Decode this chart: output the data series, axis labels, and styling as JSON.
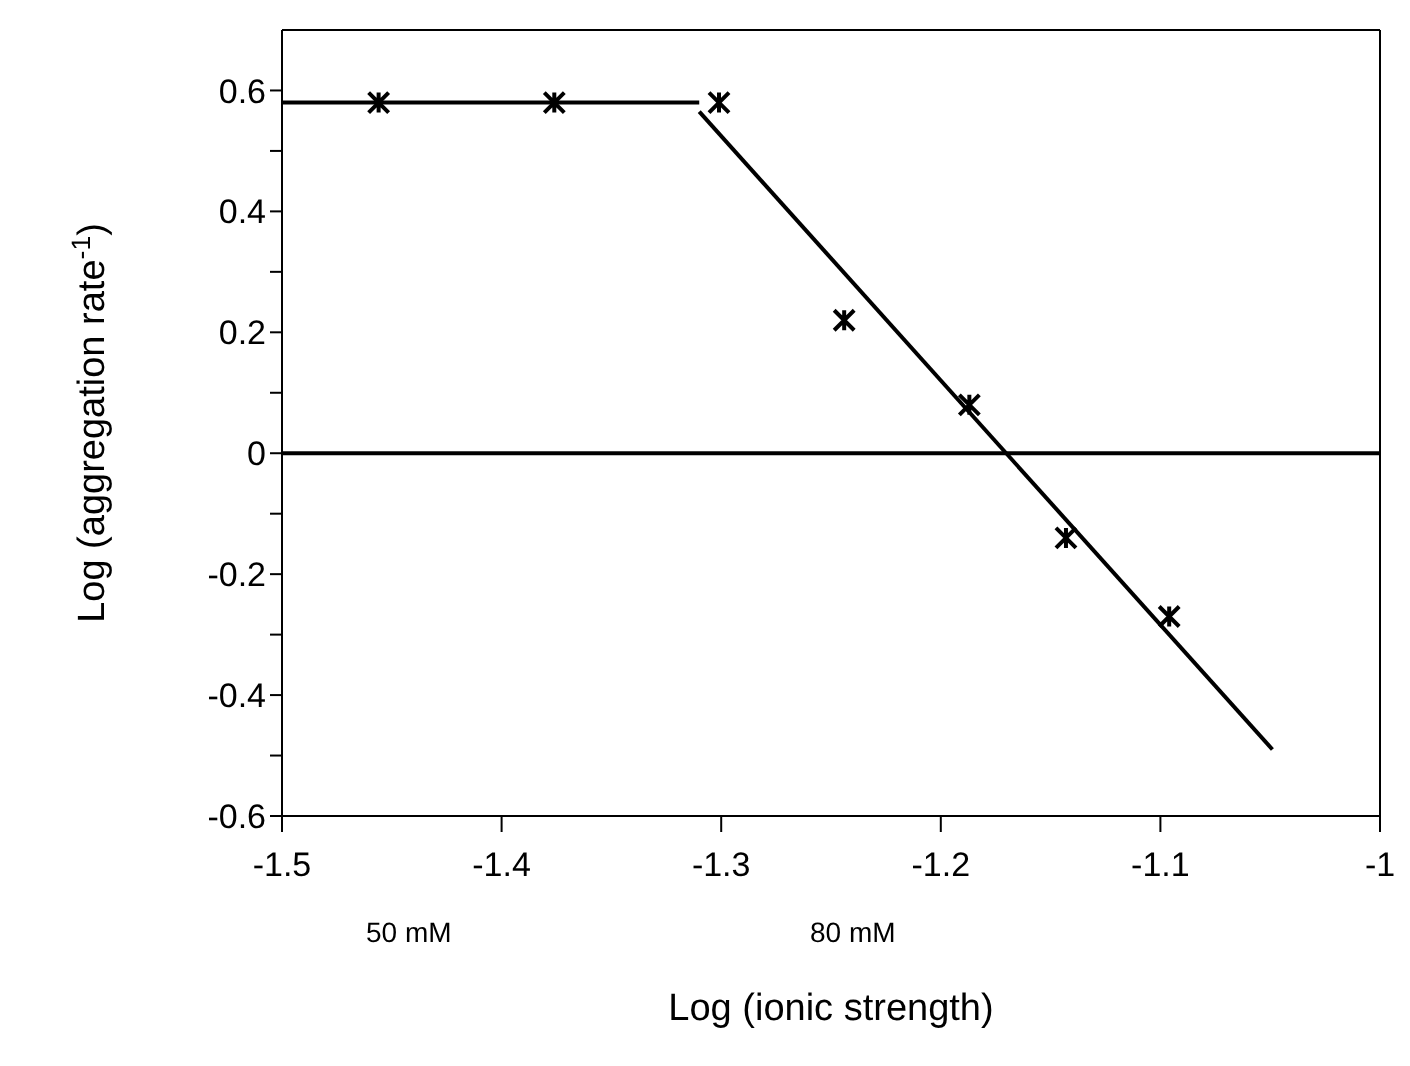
{
  "chart_data": {
    "type": "scatter",
    "xlabel": "Log (ionic strength)",
    "ylabel": "Log (aggregation rate$^{-1}$)",
    "xlim": [
      -1.5,
      -1
    ],
    "xticks": [
      -1.5,
      -1.4,
      -1.3,
      -1.2,
      -1.1,
      -1
    ],
    "ylim": [
      -0.6,
      0.7
    ],
    "yticks": [
      -0.6,
      {
        "value": -0.5,
        "label": null
      },
      -0.4,
      {
        "value": -0.3,
        "label": null
      },
      -0.2,
      {
        "value": -0.1,
        "label": null
      },
      0,
      {
        "value": 0.1,
        "label": null
      },
      0.2,
      {
        "value": 0.3,
        "label": null
      },
      0.4,
      {
        "value": 0.5,
        "label": null
      },
      0.6
    ],
    "grid": false,
    "legend": false,
    "series": [
      {
        "marker": "cross",
        "color": "#000000",
        "x": [
          -1.456,
          -1.376,
          -1.301,
          -1.244,
          -1.187,
          -1.143,
          -1.096
        ],
        "values": [
          0.58,
          0.58,
          0.58,
          0.22,
          0.08,
          -0.14,
          -0.27
        ]
      },
      {
        "type": "line",
        "marker": "none",
        "color": "#000000",
        "x": [
          -1.5,
          -1.31
        ],
        "values": [
          0.58,
          0.58
        ]
      },
      {
        "type": "line",
        "marker": "none",
        "color": "#000000",
        "x": [
          -1.31,
          -1.049
        ],
        "values": [
          0.565,
          -0.49
        ]
      }
    ],
    "ref_lines": [
      {
        "axis": "y",
        "value": 0,
        "color": "#000000"
      }
    ],
    "annotations": [
      "50 mM",
      "80 mM"
    ]
  }
}
